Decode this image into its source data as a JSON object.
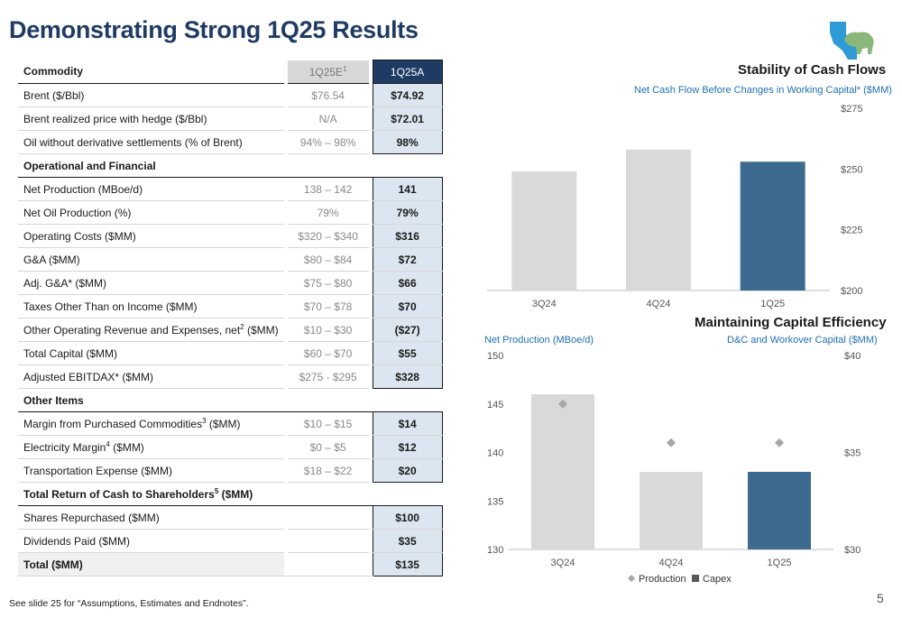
{
  "title": "Demonstrating Strong 1Q25 Results",
  "table": {
    "header": {
      "label": "Commodity",
      "est": "1Q25E",
      "est_sup": "1",
      "act": "1Q25A"
    },
    "rows": [
      {
        "type": "row",
        "label": "Brent ($/Bbl)",
        "sup": "",
        "est": "$76.54",
        "act": "$74.92"
      },
      {
        "type": "row",
        "label": "Brent realized price with hedge ($/Bbl)",
        "sup": "",
        "est": "N/A",
        "act": "$72.01"
      },
      {
        "type": "row",
        "label": "Oil without derivative settlements (% of Brent)",
        "sup": "",
        "est": "94% – 98%",
        "act": "98%"
      },
      {
        "type": "section",
        "label": "Operational and Financial",
        "sup": "",
        "est": "",
        "act": ""
      },
      {
        "type": "row",
        "label": "Net Production (MBoe/d)",
        "sup": "",
        "est": "138 – 142",
        "act": "141"
      },
      {
        "type": "row",
        "label": "Net Oil Production (%)",
        "sup": "",
        "est": "79%",
        "act": "79%"
      },
      {
        "type": "row",
        "label": "Operating Costs ($MM)",
        "sup": "",
        "est": "$320 – $340",
        "act": "$316"
      },
      {
        "type": "row",
        "label": "G&A ($MM)",
        "sup": "",
        "est": "$80 – $84",
        "act": "$72"
      },
      {
        "type": "row",
        "label": "Adj. G&A* ($MM)",
        "sup": "",
        "est": "$75 – $80",
        "act": "$66"
      },
      {
        "type": "row",
        "label": "Taxes Other Than on Income ($MM)",
        "sup": "",
        "est": "$70 – $78",
        "act": "$70"
      },
      {
        "type": "row",
        "label": "Other Operating Revenue and Expenses, net",
        "sup": "2",
        "label_suffix": " ($MM)",
        "est": "$10 – $30",
        "act": "($27)"
      },
      {
        "type": "row",
        "label": "Total Capital ($MM)",
        "sup": "",
        "est": "$60 – $70",
        "act": "$55"
      },
      {
        "type": "row",
        "label": "Adjusted EBITDAX* ($MM)",
        "sup": "",
        "est": "$275 - $295",
        "act": "$328"
      },
      {
        "type": "section",
        "label": "Other Items",
        "sup": "",
        "est": "",
        "act": ""
      },
      {
        "type": "row",
        "label": "Margin from Purchased Commodities",
        "sup": "3",
        "label_suffix": " ($MM)",
        "est": "$10 – $15",
        "act": "$14"
      },
      {
        "type": "row",
        "label": "Electricity Margin",
        "sup": "4",
        "label_suffix": " ($MM)",
        "est": "$0 – $5",
        "act": "$12"
      },
      {
        "type": "row",
        "label": "Transportation Expense ($MM)",
        "sup": "",
        "est": "$18 – $22",
        "act": "$20"
      },
      {
        "type": "section",
        "label": "Total Return of Cash to Shareholders",
        "sup": "5",
        "label_suffix": " ($MM)",
        "est": "",
        "act": ""
      },
      {
        "type": "row",
        "label": "Shares Repurchased ($MM)",
        "sup": "",
        "est": "",
        "act": "$100"
      },
      {
        "type": "row",
        "label": "Dividends Paid ($MM)",
        "sup": "",
        "est": "",
        "act": "$35"
      },
      {
        "type": "total",
        "label": "Total ($MM)",
        "sup": "",
        "est": "",
        "act": "$135"
      }
    ]
  },
  "chart_data": [
    {
      "type": "bar",
      "title": "Stability of Cash Flows",
      "subtitle": "Net Cash Flow Before Changes in Working Capital* ($MM)",
      "categories": [
        "3Q24",
        "4Q24",
        "1Q25"
      ],
      "values": [
        249,
        258,
        253
      ],
      "ylim": [
        200,
        275
      ],
      "yticks": [
        "$275",
        "$250",
        "$225",
        "$200"
      ],
      "ytick_values": [
        275,
        250,
        225,
        200
      ],
      "y_axis_side": "right",
      "colors": [
        "#d9d9d9",
        "#d9d9d9",
        "#3d6a8f"
      ],
      "grid": false
    },
    {
      "type": "bar",
      "title": "Maintaining Capital Efficiency",
      "left_axis_label": "Net Production (MBoe/d)",
      "right_axis_label": "D&C and Workover Capital  ($MM)",
      "categories": [
        "3Q24",
        "4Q24",
        "1Q25"
      ],
      "series": [
        {
          "name": "Production",
          "type": "scatter",
          "axis": "left",
          "values": [
            145,
            141,
            141
          ],
          "color": "#a6a6a6"
        },
        {
          "name": "Capex",
          "type": "bar",
          "axis": "right",
          "values": [
            38,
            34,
            34
          ],
          "colors": [
            "#d9d9d9",
            "#d9d9d9",
            "#3d6a8f"
          ]
        }
      ],
      "left_ylim": [
        130,
        150
      ],
      "left_yticks": [
        "150",
        "145",
        "140",
        "135",
        "130"
      ],
      "left_ytick_values": [
        150,
        145,
        140,
        135,
        130
      ],
      "right_ylim": [
        30,
        40
      ],
      "right_yticks": [
        "$40",
        "$35",
        "$30"
      ],
      "right_ytick_values": [
        40,
        35,
        30
      ],
      "legend": [
        "Production",
        "Capex"
      ],
      "legend_position": "bottom"
    }
  ],
  "footnote": "See slide 25 for “Assumptions, Estimates and Endnotes”.",
  "page_number": "5",
  "colors": {
    "brand": "#1f3b64",
    "accent": "#3d6a8f",
    "highlight": "#dce6f0",
    "link": "#1f6fb5"
  }
}
